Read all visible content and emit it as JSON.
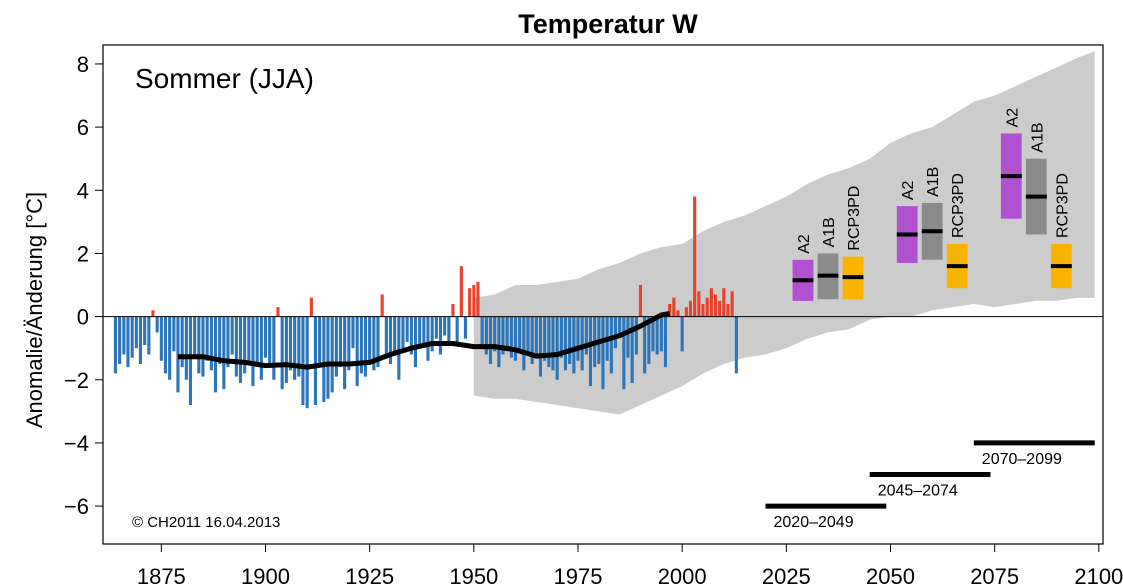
{
  "chart_data": {
    "type": "bar",
    "title": "Temperatur W",
    "annotation": "Sommer (JJA)",
    "copyright": "© CH2011 16.04.2013",
    "ylabel": "Anomalie/Änderung [°C]",
    "xlabel": "",
    "xlim": [
      1861,
      2101
    ],
    "ylim": [
      -7.2,
      8.6
    ],
    "x_ticks": [
      1875,
      1900,
      1925,
      1950,
      1975,
      2000,
      2025,
      2050,
      2075,
      2100
    ],
    "y_ticks": [
      -6,
      -4,
      -2,
      0,
      2,
      4,
      6,
      8
    ],
    "grid": false,
    "colors": {
      "negative": "#2b75b8",
      "positive": "#e8412c",
      "ensemble": "#cccccc",
      "smooth": "#000000",
      "A2": "#b051d0",
      "A1B": "#8a8a8a",
      "RCP3PD": "#f7b300"
    },
    "observations": {
      "years": [
        1864,
        1865,
        1866,
        1867,
        1868,
        1869,
        1870,
        1871,
        1872,
        1873,
        1874,
        1875,
        1876,
        1877,
        1878,
        1879,
        1880,
        1881,
        1882,
        1883,
        1884,
        1885,
        1886,
        1887,
        1888,
        1889,
        1890,
        1891,
        1892,
        1893,
        1894,
        1895,
        1896,
        1897,
        1898,
        1899,
        1900,
        1901,
        1902,
        1903,
        1904,
        1905,
        1906,
        1907,
        1908,
        1909,
        1910,
        1911,
        1912,
        1913,
        1914,
        1915,
        1916,
        1917,
        1918,
        1919,
        1920,
        1921,
        1922,
        1923,
        1924,
        1925,
        1926,
        1927,
        1928,
        1929,
        1930,
        1931,
        1932,
        1933,
        1934,
        1935,
        1936,
        1937,
        1938,
        1939,
        1940,
        1941,
        1942,
        1943,
        1944,
        1945,
        1946,
        1947,
        1948,
        1949,
        1950,
        1951,
        1952,
        1953,
        1954,
        1955,
        1956,
        1957,
        1958,
        1959,
        1960,
        1961,
        1962,
        1963,
        1964,
        1965,
        1966,
        1967,
        1968,
        1969,
        1970,
        1971,
        1972,
        1973,
        1974,
        1975,
        1976,
        1977,
        1978,
        1979,
        1980,
        1981,
        1982,
        1983,
        1984,
        1985,
        1986,
        1987,
        1988,
        1989,
        1990,
        1991,
        1992,
        1993,
        1994,
        1995,
        1996,
        1997,
        1998,
        1999,
        2000,
        2001,
        2002,
        2003,
        2004,
        2005,
        2006,
        2007,
        2008,
        2009,
        2010,
        2011,
        2012,
        2013
      ],
      "anomalies": [
        -1.8,
        -1.5,
        -1.2,
        -1.6,
        -1.3,
        -1.0,
        -1.5,
        -0.9,
        -1.2,
        0.2,
        -0.5,
        -1.4,
        -1.8,
        -2.0,
        -1.1,
        -2.4,
        -1.6,
        -2.0,
        -2.8,
        -1.3,
        -1.8,
        -1.9,
        -1.4,
        -1.7,
        -2.4,
        -1.5,
        -2.3,
        -1.6,
        -1.2,
        -1.9,
        -2.1,
        -1.8,
        -1.4,
        -2.2,
        -1.6,
        -2.0,
        -1.3,
        -1.5,
        -2.0,
        0.3,
        -2.3,
        -2.1,
        -1.7,
        -2.0,
        -1.9,
        -2.8,
        -2.9,
        0.6,
        -2.8,
        -1.5,
        -2.7,
        -2.6,
        -2.4,
        -1.9,
        -1.6,
        -2.3,
        -1.7,
        -1.0,
        -2.2,
        -1.8,
        -1.9,
        -1.4,
        -1.7,
        -1.6,
        0.7,
        -1.3,
        -1.5,
        -1.1,
        -2.0,
        -1.0,
        -0.8,
        -1.2,
        -1.6,
        -1.0,
        -0.9,
        -1.4,
        -1.1,
        -0.7,
        -1.2,
        -0.6,
        -0.8,
        0.4,
        -0.9,
        1.6,
        -0.7,
        0.9,
        1.0,
        1.1,
        -1.0,
        -1.2,
        -1.5,
        -1.1,
        -1.6,
        -1.2,
        -1.0,
        -1.3,
        -1.4,
        -1.1,
        -1.7,
        -1.2,
        -1.5,
        -1.3,
        -1.9,
        -1.4,
        -1.6,
        -1.7,
        -2.0,
        -1.3,
        -1.7,
        -1.5,
        -1.8,
        -1.4,
        -1.7,
        -1.2,
        -2.2,
        -1.6,
        -1.5,
        -2.3,
        -1.4,
        -1.8,
        -1.0,
        -0.6,
        -2.3,
        -1.3,
        -2.1,
        -1.2,
        1.0,
        -1.8,
        -1.5,
        -1.1,
        -1.2,
        -1.1,
        -1.6,
        0.4,
        0.6,
        0.2,
        -1.1,
        0.3,
        0.5,
        3.8,
        0.8,
        0.4,
        0.6,
        0.9,
        0.7,
        0.5,
        0.9,
        0.4,
        0.8,
        -1.8
      ],
      "smooth": [
        [
          1879,
          -1.27
        ],
        [
          1885,
          -1.27
        ],
        [
          1890,
          -1.4
        ],
        [
          1895,
          -1.45
        ],
        [
          1900,
          -1.55
        ],
        [
          1905,
          -1.52
        ],
        [
          1910,
          -1.6
        ],
        [
          1915,
          -1.5
        ],
        [
          1920,
          -1.5
        ],
        [
          1925,
          -1.45
        ],
        [
          1930,
          -1.2
        ],
        [
          1935,
          -1.0
        ],
        [
          1940,
          -0.85
        ],
        [
          1945,
          -0.85
        ],
        [
          1950,
          -0.95
        ],
        [
          1955,
          -0.95
        ],
        [
          1960,
          -1.05
        ],
        [
          1965,
          -1.25
        ],
        [
          1970,
          -1.2
        ],
        [
          1975,
          -1.0
        ],
        [
          1980,
          -0.8
        ],
        [
          1985,
          -0.6
        ],
        [
          1990,
          -0.3
        ],
        [
          1995,
          0.05
        ],
        [
          1997,
          0.1
        ]
      ]
    },
    "ensemble_band": {
      "x": [
        1950,
        1955,
        1960,
        1965,
        1970,
        1975,
        1980,
        1985,
        1990,
        1995,
        2000,
        2005,
        2010,
        2015,
        2020,
        2025,
        2030,
        2035,
        2040,
        2045,
        2050,
        2055,
        2060,
        2065,
        2070,
        2075,
        2080,
        2085,
        2090,
        2095,
        2099
      ],
      "lower": [
        -2.5,
        -2.6,
        -2.6,
        -2.7,
        -2.8,
        -2.9,
        -3.0,
        -3.1,
        -2.8,
        -2.5,
        -2.2,
        -1.8,
        -1.5,
        -1.3,
        -1.2,
        -1.0,
        -0.7,
        -0.5,
        -0.4,
        -0.1,
        0.0,
        0.0,
        0.2,
        0.3,
        0.4,
        0.3,
        0.4,
        0.5,
        0.5,
        0.6,
        0.6
      ],
      "upper": [
        0.6,
        0.7,
        1.0,
        1.0,
        1.1,
        1.2,
        1.5,
        1.7,
        2.0,
        2.2,
        2.3,
        2.7,
        3.0,
        3.2,
        3.5,
        3.8,
        4.2,
        4.5,
        4.7,
        5.0,
        5.5,
        5.8,
        6.0,
        6.4,
        6.8,
        7.0,
        7.3,
        7.6,
        7.9,
        8.2,
        8.4
      ]
    },
    "scenarios": [
      {
        "period": "2020–2049",
        "name": "A2",
        "x": 2029,
        "low": 0.5,
        "mid": 1.15,
        "high": 1.8
      },
      {
        "period": "2020–2049",
        "name": "A1B",
        "x": 2035,
        "low": 0.55,
        "mid": 1.3,
        "high": 2.0
      },
      {
        "period": "2020–2049",
        "name": "RCP3PD",
        "x": 2041,
        "low": 0.55,
        "mid": 1.25,
        "high": 1.9
      },
      {
        "period": "2045–2074",
        "name": "A2",
        "x": 2054,
        "low": 1.7,
        "mid": 2.6,
        "high": 3.5
      },
      {
        "period": "2045–2074",
        "name": "A1B",
        "x": 2060,
        "low": 1.8,
        "mid": 2.7,
        "high": 3.6
      },
      {
        "period": "2045–2074",
        "name": "RCP3PD",
        "x": 2066,
        "low": 0.9,
        "mid": 1.6,
        "high": 2.3
      },
      {
        "period": "2070–2099",
        "name": "A2",
        "x": 2079,
        "low": 3.1,
        "mid": 4.45,
        "high": 5.8
      },
      {
        "period": "2070–2099",
        "name": "A1B",
        "x": 2085,
        "low": 2.6,
        "mid": 3.8,
        "high": 5.0
      },
      {
        "period": "2070–2099",
        "name": "RCP3PD",
        "x": 2091,
        "low": 0.9,
        "mid": 1.6,
        "high": 2.3
      }
    ],
    "periods": [
      {
        "label": "2020–2049",
        "start": 2020,
        "end": 2049,
        "y": -6.0
      },
      {
        "label": "2045–2074",
        "start": 2045,
        "end": 2074,
        "y": -5.0
      },
      {
        "label": "2070–2099",
        "start": 2070,
        "end": 2099,
        "y": -4.0
      }
    ]
  }
}
